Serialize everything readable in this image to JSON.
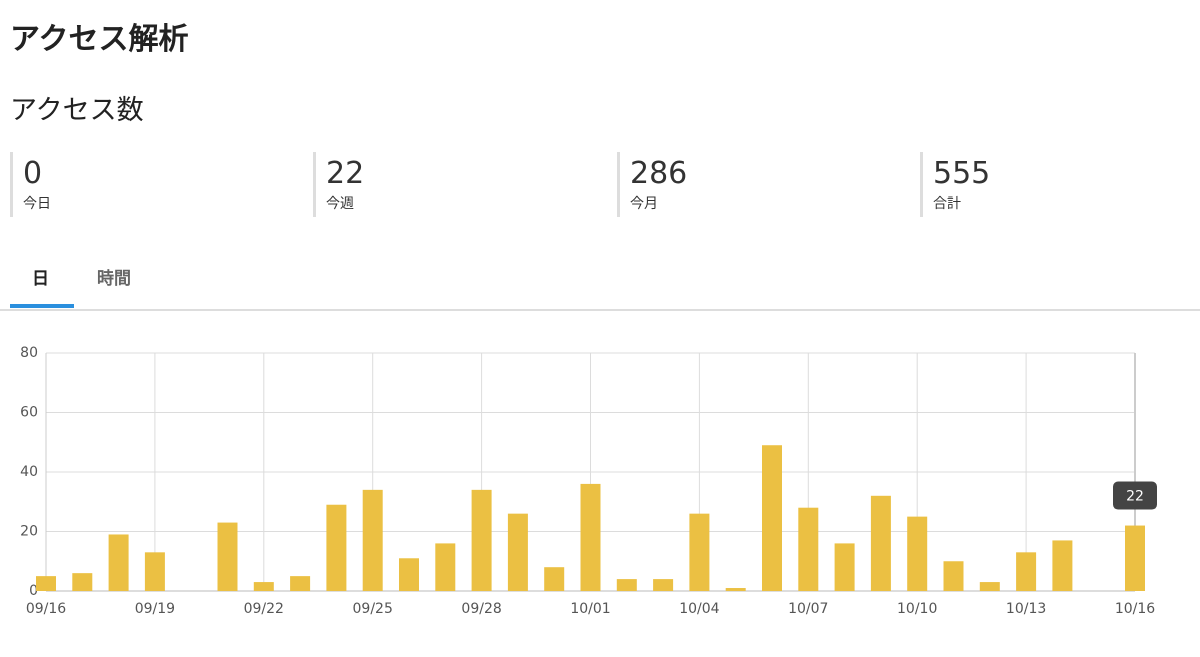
{
  "header": {
    "title": "アクセス解析"
  },
  "section": {
    "title": "アクセス数"
  },
  "stats": [
    {
      "value": 0,
      "label": "今日"
    },
    {
      "value": 22,
      "label": "今週"
    },
    {
      "value": 286,
      "label": "今月"
    },
    {
      "value": 555,
      "label": "合計"
    }
  ],
  "tabs": [
    "日",
    "時間"
  ],
  "chart_data": {
    "type": "bar",
    "categories": [
      "09/16",
      null,
      null,
      "09/19",
      null,
      null,
      "09/22",
      null,
      null,
      "09/25",
      null,
      null,
      "09/28",
      null,
      null,
      "10/01",
      null,
      null,
      "10/04",
      null,
      null,
      "10/07",
      null,
      null,
      "10/10",
      null,
      null,
      "10/13",
      null,
      null,
      "10/16"
    ],
    "values": [
      5,
      6,
      19,
      13,
      0,
      23,
      3,
      5,
      29,
      34,
      11,
      16,
      34,
      26,
      8,
      36,
      4,
      4,
      26,
      1,
      49,
      28,
      16,
      32,
      25,
      10,
      3,
      13,
      17,
      0,
      22
    ],
    "color": "#ebc043",
    "ylim": [
      0,
      80
    ],
    "yticks": [
      0,
      20,
      40,
      60,
      80
    ],
    "grid": true
  }
}
